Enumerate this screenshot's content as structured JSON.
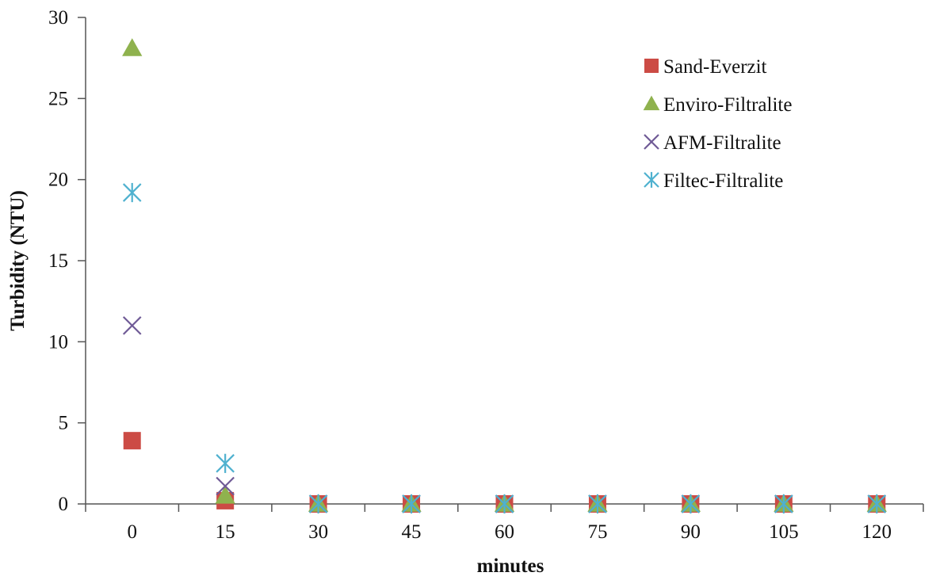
{
  "chart_data": {
    "type": "scatter",
    "title": "",
    "xlabel": "minutes",
    "ylabel": "Turbidity (NTU)",
    "categories": [
      "0",
      "15",
      "30",
      "45",
      "60",
      "75",
      "90",
      "105",
      "120"
    ],
    "ylim": [
      0,
      30
    ],
    "yticks": [
      "0",
      "5",
      "10",
      "15",
      "20",
      "25",
      "30"
    ],
    "grid": false,
    "legend": "top-right",
    "series": [
      {
        "name": "Sand-Everzit",
        "marker": "square",
        "color": "#cc4b45",
        "values": [
          3.9,
          0.2,
          0,
          0,
          0,
          0,
          0,
          0,
          0
        ]
      },
      {
        "name": "Enviro-Filtralite",
        "marker": "triangle",
        "color": "#8fb24e",
        "values": [
          28.1,
          0.5,
          0,
          0,
          0,
          0,
          0,
          0,
          0
        ]
      },
      {
        "name": "AFM-Filtralite",
        "marker": "x",
        "color": "#6f5a96",
        "values": [
          11.0,
          1.1,
          0,
          0,
          0,
          0,
          0,
          0,
          0
        ]
      },
      {
        "name": "Filtec-Filtralite",
        "marker": "asterisk",
        "color": "#4fb1cf",
        "values": [
          19.2,
          2.5,
          0,
          0,
          0,
          0,
          0,
          0,
          0
        ]
      }
    ]
  }
}
